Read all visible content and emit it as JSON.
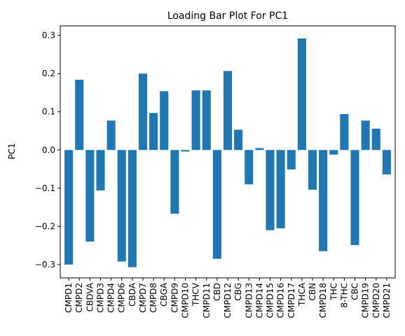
{
  "chart_data": {
    "type": "bar",
    "title": "Loading Bar Plot For PC1",
    "xlabel": "",
    "ylabel": "PC1",
    "ylim": [
      -0.335,
      0.325
    ],
    "yticks": [
      -0.3,
      -0.2,
      -0.1,
      0.0,
      0.1,
      0.2,
      0.3
    ],
    "ytick_labels": [
      "−0.3",
      "−0.2",
      "−0.1",
      "0.0",
      "0.1",
      "0.2",
      "0.3"
    ],
    "grid": false,
    "legend": "none",
    "bar_color": "#1f77b4",
    "categories": [
      "CMPD1",
      "CMPD2",
      "CBDVA",
      "CMPD3",
      "CMPD4",
      "CMPD6",
      "CBDA",
      "CMPD7",
      "CMPD8",
      "CBGA",
      "CMPD9",
      "CMPD10",
      "THCV",
      "CMPD11",
      "CBD",
      "CMPD12",
      "CBG",
      "CMPD13",
      "CMPD14",
      "CMPD15",
      "CMPD16",
      "CMPD17",
      "THCA",
      "CBN",
      "CMPD18",
      "THC",
      "8-THC",
      "CBC",
      "CMPD19",
      "CMPD20",
      "CMPD21"
    ],
    "values": [
      -0.3,
      0.184,
      -0.24,
      -0.106,
      0.077,
      -0.292,
      -0.307,
      0.2,
      0.097,
      0.154,
      -0.167,
      -0.004,
      0.156,
      0.156,
      -0.285,
      0.207,
      0.053,
      -0.09,
      0.005,
      -0.21,
      -0.205,
      -0.051,
      0.292,
      -0.104,
      -0.265,
      -0.012,
      0.094,
      -0.249,
      0.077,
      0.056,
      -0.064
    ]
  }
}
